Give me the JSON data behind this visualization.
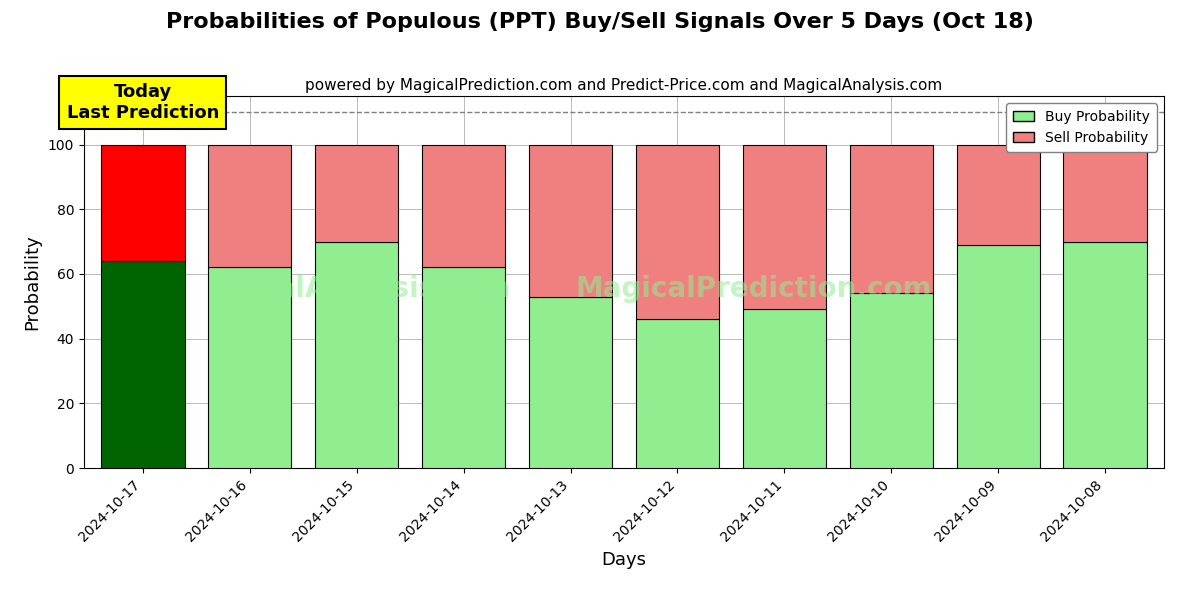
{
  "title": "Probabilities of Populous (PPT) Buy/Sell Signals Over 5 Days (Oct 18)",
  "subtitle": "powered by MagicalPrediction.com and Predict-Price.com and MagicalAnalysis.com",
  "xlabel": "Days",
  "ylabel": "Probability",
  "dates": [
    "2024-10-17",
    "2024-10-16",
    "2024-10-15",
    "2024-10-14",
    "2024-10-13",
    "2024-10-12",
    "2024-10-11",
    "2024-10-10",
    "2024-10-09",
    "2024-10-08"
  ],
  "buy_probs": [
    64,
    62,
    70,
    62,
    53,
    46,
    49,
    54,
    69,
    70
  ],
  "sell_probs": [
    36,
    38,
    30,
    38,
    47,
    54,
    51,
    46,
    31,
    30
  ],
  "today_buy_color": "#006400",
  "today_sell_color": "#FF0000",
  "other_buy_color": "#90EE90",
  "other_sell_color": "#F08080",
  "today_annotation_text": "Today\nLast Prediction",
  "today_annotation_bg": "#FFFF00",
  "today_annotation_border": "#000000",
  "legend_buy_label": "Buy Probability",
  "legend_sell_label": "Sell Probability",
  "ylim": [
    0,
    115
  ],
  "yticks": [
    0,
    20,
    40,
    60,
    80,
    100
  ],
  "dashed_line_y": 110,
  "watermark1": "calAnalysis.co",
  "watermark2": "MagicalPrediction.co",
  "title_fontsize": 16,
  "subtitle_fontsize": 11,
  "axis_label_fontsize": 13,
  "tick_fontsize": 10,
  "background_color": "#ffffff",
  "grid_color": "#bbbbbb"
}
